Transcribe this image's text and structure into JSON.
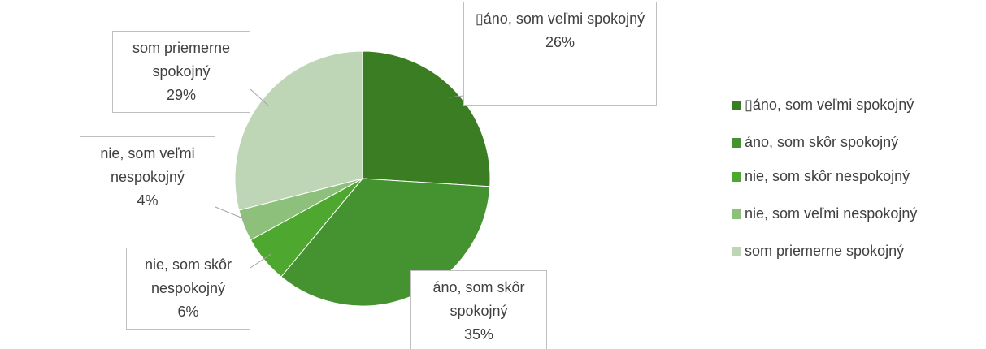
{
  "chart_data": {
    "type": "pie",
    "categories": [
      "▯áno, som veľmi spokojný",
      "áno, som skôr spokojný",
      "nie, som skôr nespokojný",
      "nie, som veľmi nespokojný",
      "som priemerne spokojný"
    ],
    "values": [
      26,
      35,
      6,
      4,
      29
    ],
    "value_labels": [
      "26%",
      "35%",
      "6%",
      "4%",
      "29%"
    ],
    "colors": [
      "#3b7d23",
      "#459330",
      "#4ea72e",
      "#8dc07a",
      "#bed6b6"
    ],
    "legend": "right"
  }
}
